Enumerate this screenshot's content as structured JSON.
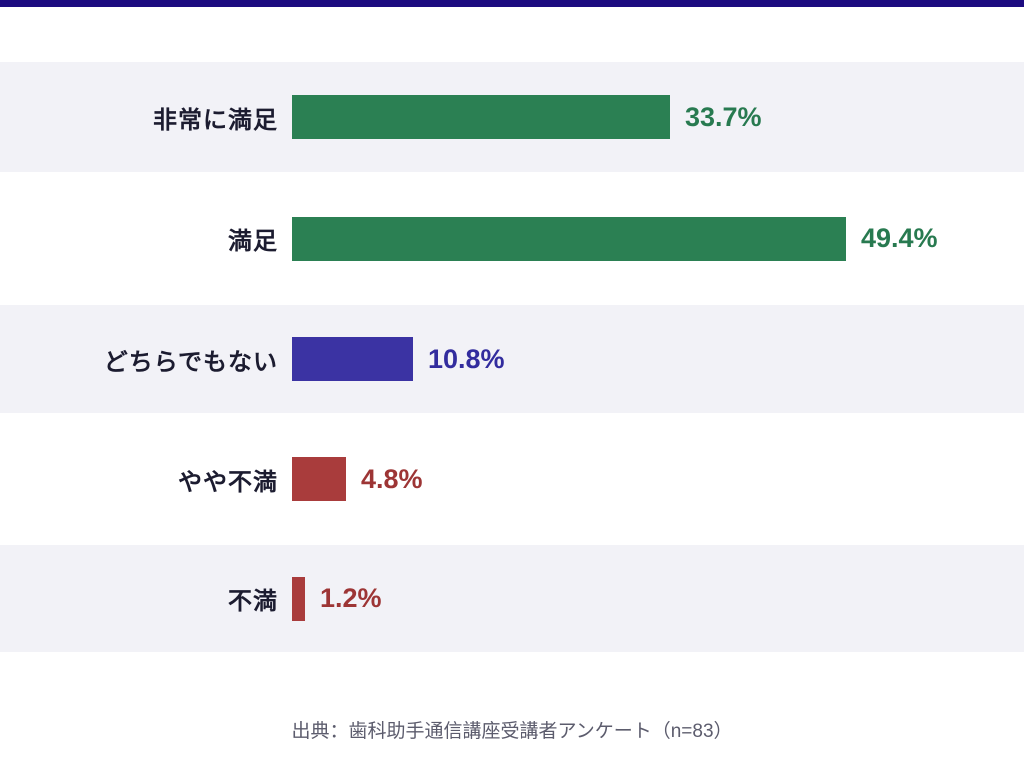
{
  "page": {
    "top_accent_color": "#1c0b80",
    "band_color": "#f2f2f7"
  },
  "chart_data": {
    "type": "bar",
    "orientation": "horizontal",
    "title": "",
    "xlabel": "",
    "ylabel": "",
    "unit": "%",
    "xlim": [
      0,
      55
    ],
    "grid": false,
    "legend": false,
    "categories": [
      "非常に満足",
      "満足",
      "どちらでもない",
      "やや不満",
      "不満"
    ],
    "values": [
      33.7,
      49.4,
      10.8,
      4.8,
      1.2
    ],
    "value_labels": [
      "33.7%",
      "49.4%",
      "10.8%",
      "4.8%",
      "1.2%"
    ],
    "bar_colors": [
      "#2b8053",
      "#2b8053",
      "#3b33a3",
      "#a93c3c",
      "#a93c3c"
    ],
    "value_text_colors": [
      "#287a50",
      "#287a50",
      "#322c9e",
      "#9d3535",
      "#9d3535"
    ],
    "source": "出典：歯科助手通信講座受講者アンケート（n=83）"
  }
}
